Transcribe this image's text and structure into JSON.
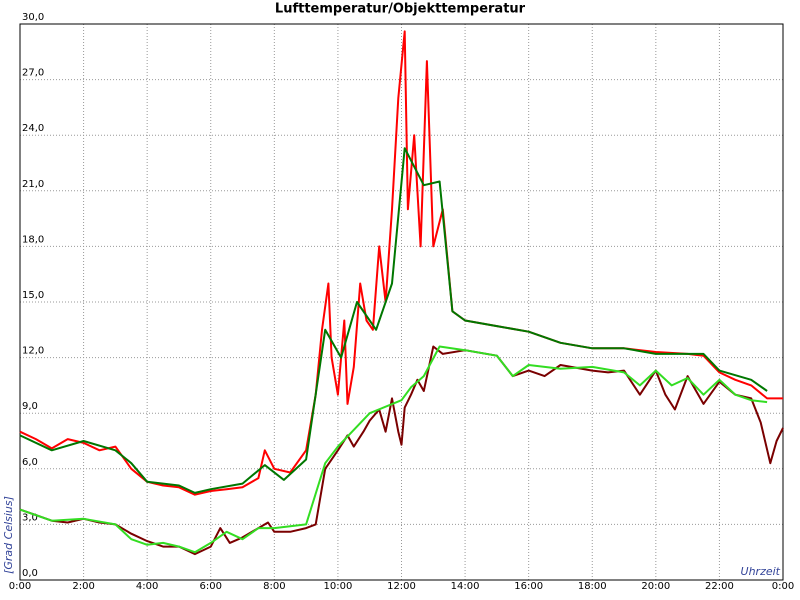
{
  "chart_data": {
    "type": "line",
    "title": "Lufttemperatur/Objekttemperatur",
    "ylabel": "[Grad Celsius]",
    "xlabel": "Uhrzeit",
    "xlim": [
      0,
      24
    ],
    "ylim": [
      0,
      30
    ],
    "grid": true,
    "xticks": [
      {
        "value": 0,
        "label": "0:00"
      },
      {
        "value": 2,
        "label": "2:00"
      },
      {
        "value": 4,
        "label": "4:00"
      },
      {
        "value": 6,
        "label": "6:00"
      },
      {
        "value": 8,
        "label": "8:00"
      },
      {
        "value": 10,
        "label": "10:00"
      },
      {
        "value": 12,
        "label": "12:00"
      },
      {
        "value": 14,
        "label": "14:00"
      },
      {
        "value": 16,
        "label": "16:00"
      },
      {
        "value": 18,
        "label": "18:00"
      },
      {
        "value": 20,
        "label": "20:00"
      },
      {
        "value": 22,
        "label": "22:00"
      },
      {
        "value": 24,
        "label": "0:00"
      }
    ],
    "yticks": [
      {
        "value": 0,
        "label": "0,0"
      },
      {
        "value": 3,
        "label": "3,0"
      },
      {
        "value": 6,
        "label": "6,0"
      },
      {
        "value": 9,
        "label": "9,0"
      },
      {
        "value": 12,
        "label": "12,0"
      },
      {
        "value": 15,
        "label": "15,0"
      },
      {
        "value": 18,
        "label": "18,0"
      },
      {
        "value": 21,
        "label": "21,0"
      },
      {
        "value": 24,
        "label": "24,0"
      },
      {
        "value": 27,
        "label": "27,0"
      },
      {
        "value": 30,
        "label": "30,0"
      }
    ],
    "series": [
      {
        "color": "#ff0000",
        "x": [
          0,
          0.5,
          1,
          1.5,
          2,
          2.5,
          3,
          3.5,
          4,
          4.5,
          5,
          5.5,
          6,
          6.5,
          7,
          7.5,
          7.7,
          8,
          8.5,
          9,
          9.3,
          9.5,
          9.7,
          9.8,
          10,
          10.2,
          10.3,
          10.5,
          10.7,
          10.9,
          11.1,
          11.3,
          11.5,
          11.7,
          11.9,
          12.1,
          12.2,
          12.4,
          12.6,
          12.8,
          13,
          13.3,
          13.6,
          14,
          15,
          16,
          17,
          18,
          19,
          20,
          21,
          21.5,
          22,
          22.5,
          23,
          23.5,
          24
        ],
        "values": [
          8.0,
          7.6,
          7.1,
          7.6,
          7.4,
          7.0,
          7.2,
          6.0,
          5.3,
          5.1,
          5.0,
          4.6,
          4.8,
          4.9,
          5.0,
          5.5,
          7.0,
          6.0,
          5.8,
          7.0,
          10.0,
          13.5,
          16.0,
          12.0,
          10.0,
          14.0,
          9.5,
          11.5,
          16.0,
          14.0,
          13.5,
          18.0,
          15.0,
          20.0,
          26.0,
          29.6,
          20.0,
          24.0,
          18.0,
          28.0,
          18.0,
          20.0,
          14.5,
          14.0,
          13.7,
          13.4,
          12.8,
          12.5,
          12.5,
          12.3,
          12.2,
          12.1,
          11.2,
          10.8,
          10.5,
          9.8,
          9.8
        ]
      },
      {
        "color": "#007700",
        "x": [
          0,
          1,
          2,
          3,
          3.5,
          4,
          5,
          5.5,
          6,
          7,
          7.7,
          8.3,
          9,
          9.6,
          10.1,
          10.6,
          11.2,
          11.7,
          12.1,
          12.7,
          13.2,
          13.6,
          14,
          15,
          16,
          17,
          18,
          19,
          20,
          21,
          21.5,
          22,
          23,
          23.5
        ],
        "values": [
          7.8,
          7.0,
          7.5,
          7.0,
          6.3,
          5.3,
          5.1,
          4.7,
          4.9,
          5.2,
          6.2,
          5.4,
          6.5,
          13.5,
          12.0,
          15.0,
          13.5,
          16.0,
          23.3,
          21.3,
          21.5,
          14.5,
          14.0,
          13.7,
          13.4,
          12.8,
          12.5,
          12.5,
          12.2,
          12.2,
          12.2,
          11.3,
          10.8,
          10.2
        ]
      },
      {
        "color": "#7a0000",
        "x": [
          0,
          0.5,
          1,
          1.5,
          2,
          2.5,
          3,
          3.5,
          4,
          4.5,
          5,
          5.5,
          6,
          6.3,
          6.6,
          7,
          7.5,
          7.8,
          8,
          8.5,
          9,
          9.3,
          9.6,
          10,
          10.3,
          10.5,
          10.8,
          11,
          11.3,
          11.5,
          11.7,
          11.9,
          12,
          12.1,
          12.3,
          12.5,
          12.7,
          13,
          13.3,
          14,
          15,
          15.5,
          16,
          16.5,
          17,
          18,
          18.5,
          19,
          19.5,
          20,
          20.3,
          20.6,
          21,
          21.5,
          22,
          22.5,
          23,
          23.3,
          23.6,
          23.8,
          24
        ],
        "values": [
          3.8,
          3.5,
          3.2,
          3.1,
          3.3,
          3.1,
          3.0,
          2.5,
          2.1,
          1.8,
          1.8,
          1.4,
          1.8,
          2.8,
          2.0,
          2.3,
          2.8,
          3.1,
          2.6,
          2.6,
          2.8,
          3.0,
          6.0,
          7.0,
          7.8,
          7.2,
          8.0,
          8.6,
          9.2,
          8.0,
          9.8,
          8.0,
          7.3,
          9.3,
          10.0,
          10.8,
          10.2,
          12.6,
          12.2,
          12.4,
          12.1,
          11.0,
          11.3,
          11.0,
          11.6,
          11.3,
          11.2,
          11.3,
          10.0,
          11.3,
          10.0,
          9.2,
          11.0,
          9.5,
          10.7,
          10.0,
          9.8,
          8.5,
          6.3,
          7.5,
          8.2
        ]
      },
      {
        "color": "#33dd22",
        "x": [
          0,
          1,
          2,
          3,
          3.5,
          4,
          4.5,
          5,
          5.5,
          6,
          6.5,
          7,
          7.5,
          8,
          9,
          9.6,
          10,
          11,
          12,
          12.3,
          12.7,
          13.2,
          14,
          15,
          15.5,
          16,
          17,
          18,
          19,
          19.5,
          20,
          20.5,
          21,
          21.5,
          22,
          22.5,
          23,
          23.5
        ],
        "values": [
          3.8,
          3.2,
          3.3,
          3.0,
          2.2,
          1.9,
          2.0,
          1.8,
          1.5,
          2.0,
          2.6,
          2.2,
          2.8,
          2.8,
          3.0,
          6.3,
          7.2,
          9.0,
          9.7,
          10.4,
          11.0,
          12.6,
          12.4,
          12.1,
          11.0,
          11.6,
          11.4,
          11.5,
          11.2,
          10.5,
          11.3,
          10.5,
          10.9,
          10.0,
          10.8,
          10.0,
          9.7,
          9.6
        ]
      }
    ]
  }
}
